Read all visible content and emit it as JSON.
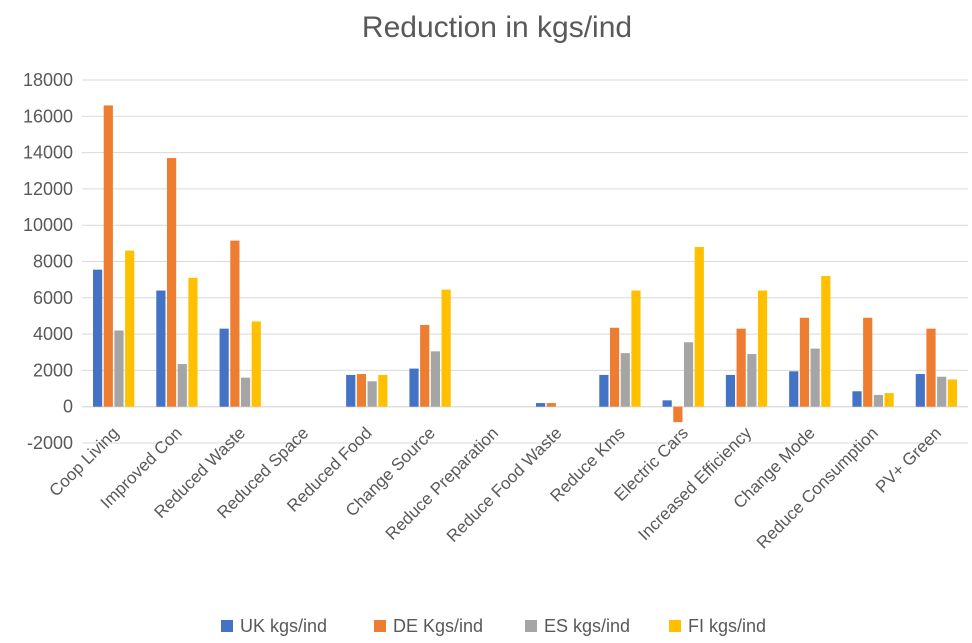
{
  "chart_data": {
    "type": "bar",
    "title": "Reduction in kgs/ind",
    "xlabel": "",
    "ylabel": "",
    "categories": [
      "Coop Living",
      "Improved Con",
      "Reduced Waste",
      "Reduced Space",
      "Reduced Food",
      "Change Source",
      "Reduce Preparation",
      "Reduce Food Waste",
      "Reduce Kms",
      "Electric Cars",
      "Increased Efficiency",
      "Change Mode",
      "Reduce Consumption",
      "PV+ Green"
    ],
    "series": [
      {
        "name": "UK kgs/ind",
        "color": "#4472C4",
        "values": [
          7550,
          6400,
          4300,
          0,
          1750,
          2100,
          0,
          200,
          1750,
          350,
          1750,
          1950,
          850,
          1800
        ]
      },
      {
        "name": "DE Kgs/ind",
        "color": "#ED7D31",
        "values": [
          16600,
          13700,
          9150,
          0,
          1800,
          4500,
          0,
          200,
          4350,
          -850,
          4300,
          4900,
          4900,
          4300
        ]
      },
      {
        "name": "ES kgs/ind",
        "color": "#A5A5A5",
        "values": [
          4200,
          2350,
          1600,
          0,
          1400,
          3050,
          0,
          0,
          2950,
          3550,
          2900,
          3200,
          650,
          1650
        ]
      },
      {
        "name": "FI kgs/ind",
        "color": "#FFC000",
        "values": [
          8600,
          7100,
          4700,
          0,
          1750,
          6450,
          0,
          0,
          6400,
          8800,
          6400,
          7200,
          750,
          1500
        ]
      }
    ],
    "ylim": [
      -2000,
      18000
    ],
    "yticks": [
      18000,
      16000,
      14000,
      12000,
      10000,
      8000,
      6000,
      4000,
      2000,
      0,
      -2000
    ],
    "grid": true,
    "legend_position": "bottom"
  }
}
